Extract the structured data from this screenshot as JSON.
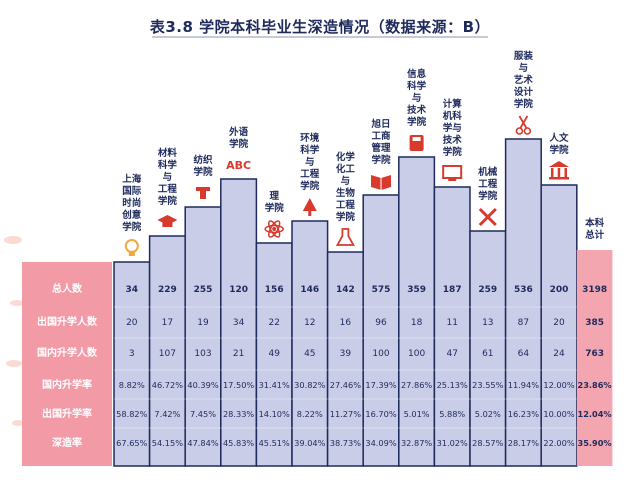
{
  "title": "表3.8 学院本科毕业生深造情况（数据来源：B）",
  "colors": {
    "bar_fill": "#c9cde8",
    "bar_stroke": "#1f2a5c",
    "total_fill": "#f3a5b0",
    "row_label_bg": "#f29aa6",
    "accent_red": "#d83a2e",
    "text_dark": "#1f2a5c"
  },
  "chart_data": {
    "type": "table",
    "note": "bar heights are decorative (not data)",
    "columns": [
      {
        "name": "上海国际时尚创意学院",
        "label_lines": [
          "上海",
          "国际",
          "时尚",
          "创意",
          "学院"
        ],
        "icon": "lightbulb-icon"
      },
      {
        "name": "材料科学与工程学院",
        "label_lines": [
          "材料",
          "科学",
          "与",
          "工程",
          "学院"
        ],
        "icon": "graduation-cap-icon"
      },
      {
        "name": "纺织学院",
        "label_lines": [
          "纺织",
          "学院"
        ],
        "icon": "spool-icon"
      },
      {
        "name": "外语学院",
        "label_lines": [
          "外语",
          "学院"
        ],
        "icon": "abc-icon"
      },
      {
        "name": "理学院",
        "label_lines": [
          "理",
          "学院"
        ],
        "icon": "atom-icon"
      },
      {
        "name": "环境科学与工程学院",
        "label_lines": [
          "环境",
          "科学",
          "与",
          "工程",
          "学院"
        ],
        "icon": "tree-icon"
      },
      {
        "name": "化学化工与生物工程学院",
        "label_lines": [
          "化学",
          "化工",
          "与",
          "生物",
          "工程",
          "学院"
        ],
        "icon": "flask-icon"
      },
      {
        "name": "旭日工商管理学院",
        "label_lines": [
          "旭日",
          "工商",
          "管理",
          "学院"
        ],
        "icon": "book-icon"
      },
      {
        "name": "信息科学与技术学院",
        "label_lines": [
          "信息",
          "科学",
          "与",
          "技术",
          "学院"
        ],
        "icon": "sd-card-icon"
      },
      {
        "name": "计算机科学与技术学院",
        "label_lines": [
          "计算",
          "机科",
          "学与",
          "技术",
          "学院"
        ],
        "icon": "monitor-icon"
      },
      {
        "name": "机械工程学院",
        "label_lines": [
          "机械",
          "工程",
          "学院"
        ],
        "icon": "tools-icon"
      },
      {
        "name": "服装与艺术设计学院",
        "label_lines": [
          "服装",
          "与",
          "艺术",
          "设计",
          "学院"
        ],
        "icon": "scissors-icon"
      },
      {
        "name": "人文学院",
        "label_lines": [
          "人文",
          "学院"
        ],
        "icon": "temple-icon"
      },
      {
        "name": "本科总计",
        "label_lines": [
          "本科",
          "总计"
        ],
        "icon": ""
      }
    ],
    "rows": [
      {
        "label": "总人数",
        "bold": true,
        "values": [
          "34",
          "229",
          "255",
          "120",
          "156",
          "146",
          "142",
          "575",
          "359",
          "187",
          "259",
          "536",
          "200",
          "3198"
        ]
      },
      {
        "label": "出国升学人数",
        "bold": false,
        "values": [
          "20",
          "17",
          "19",
          "34",
          "22",
          "12",
          "16",
          "96",
          "18",
          "11",
          "13",
          "87",
          "20",
          "385"
        ]
      },
      {
        "label": "国内升学人数",
        "bold": false,
        "values": [
          "3",
          "107",
          "103",
          "21",
          "49",
          "45",
          "39",
          "100",
          "100",
          "47",
          "61",
          "64",
          "24",
          "763"
        ]
      },
      {
        "label": "国内升学率",
        "bold": false,
        "values": [
          "8.82%",
          "46.72%",
          "40.39%",
          "17.50%",
          "31.41%",
          "30.82%",
          "27.46%",
          "17.39%",
          "27.86%",
          "25.13%",
          "23.55%",
          "11.94%",
          "12.00%",
          "23.86%"
        ]
      },
      {
        "label": "出国升学率",
        "bold": false,
        "values": [
          "58.82%",
          "7.42%",
          "7.45%",
          "28.33%",
          "14.10%",
          "8.22%",
          "11.27%",
          "16.70%",
          "5.01%",
          "5.88%",
          "5.02%",
          "16.23%",
          "10.00%",
          "12.04%"
        ]
      },
      {
        "label": "深造率",
        "bold": false,
        "values": [
          "67.65%",
          "54.15%",
          "47.84%",
          "45.83%",
          "45.51%",
          "39.04%",
          "38.73%",
          "34.09%",
          "32.87%",
          "31.02%",
          "28.57%",
          "28.17%",
          "22.00%",
          "35.90%"
        ]
      }
    ]
  }
}
